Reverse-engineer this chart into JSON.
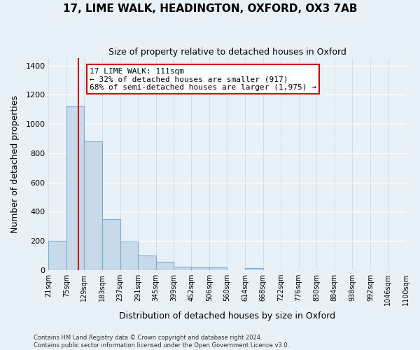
{
  "title": "17, LIME WALK, HEADINGTON, OXFORD, OX3 7AB",
  "subtitle": "Size of property relative to detached houses in Oxford",
  "xlabel": "Distribution of detached houses by size in Oxford",
  "ylabel": "Number of detached properties",
  "bin_edges": [
    21,
    75,
    129,
    183,
    237,
    291,
    345,
    399,
    452,
    506,
    560,
    614,
    668,
    722,
    776,
    830,
    884,
    938,
    992,
    1046,
    1100
  ],
  "bar_heights": [
    200,
    1120,
    880,
    350,
    195,
    100,
    57,
    25,
    20,
    20,
    0,
    15,
    0,
    0,
    0,
    0,
    0,
    0,
    0,
    0
  ],
  "bar_color": "#c8daea",
  "bar_edgecolor": "#7aadd4",
  "property_value": 111,
  "pct_smaller": 32,
  "n_smaller": 917,
  "pct_larger": 68,
  "n_larger": 1975,
  "vline_color": "#cc0000",
  "annotation_box_edgecolor": "#cc0000",
  "ylim": [
    0,
    1450
  ],
  "yticks": [
    0,
    200,
    400,
    600,
    800,
    1000,
    1200,
    1400
  ],
  "tick_labels": [
    "21sqm",
    "75sqm",
    "129sqm",
    "183sqm",
    "237sqm",
    "291sqm",
    "345sqm",
    "399sqm",
    "452sqm",
    "506sqm",
    "560sqm",
    "614sqm",
    "668sqm",
    "722sqm",
    "776sqm",
    "830sqm",
    "884sqm",
    "938sqm",
    "992sqm",
    "1046sqm",
    "1100sqm"
  ],
  "footer_line1": "Contains HM Land Registry data © Crown copyright and database right 2024.",
  "footer_line2": "Contains public sector information licensed under the Open Government Licence v3.0.",
  "bg_color": "#e8f0f8",
  "plot_bg_color": "#e8f0f8",
  "grid_color_x": "#d0d8e0",
  "grid_color_y": "#ffffff"
}
